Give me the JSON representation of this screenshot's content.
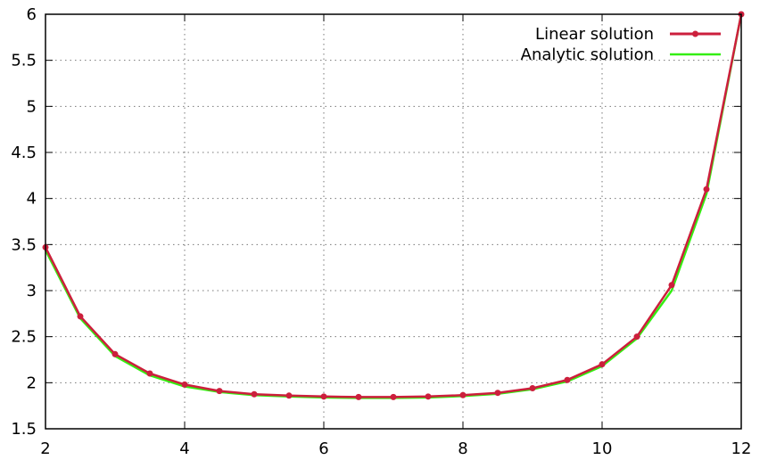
{
  "chart_data": {
    "type": "line",
    "title": "",
    "xlabel": "",
    "ylabel": "",
    "xlim": [
      2,
      12
    ],
    "ylim": [
      1.5,
      6
    ],
    "xticks": [
      2,
      4,
      6,
      8,
      10,
      12
    ],
    "yticks": [
      1.5,
      2,
      2.5,
      3,
      3.5,
      4,
      4.5,
      5,
      5.5,
      6
    ],
    "xtick_labels": [
      "2",
      "4",
      "6",
      "8",
      "10",
      "12"
    ],
    "ytick_labels": [
      "1.5",
      "2",
      "2.5",
      "3",
      "3.5",
      "4",
      "4.5",
      "5",
      "5.5",
      "6"
    ],
    "grid": true,
    "legend_position": "top-right",
    "series": [
      {
        "name": "Linear solution",
        "color": "#cc1f3c",
        "markers": true,
        "x": [
          2,
          2.5,
          3,
          3.5,
          4,
          4.5,
          5,
          5.5,
          6,
          6.5,
          7,
          7.5,
          8,
          8.5,
          9,
          9.5,
          10,
          10.5,
          11,
          11.5,
          12
        ],
        "y": [
          3.47,
          2.72,
          2.31,
          2.1,
          1.98,
          1.91,
          1.875,
          1.86,
          1.85,
          1.845,
          1.845,
          1.85,
          1.865,
          1.89,
          1.94,
          2.03,
          2.2,
          2.5,
          3.06,
          4.1,
          6.0
        ]
      },
      {
        "name": "Analytic solution",
        "color": "#33ee11",
        "markers": false,
        "x": [
          2,
          2.5,
          3,
          3.5,
          4,
          4.5,
          5,
          5.5,
          6,
          6.5,
          7,
          7.5,
          8,
          8.5,
          9,
          9.5,
          10,
          10.5,
          11,
          11.5,
          12
        ],
        "y": [
          3.44,
          2.7,
          2.29,
          2.08,
          1.96,
          1.9,
          1.865,
          1.85,
          1.84,
          1.835,
          1.835,
          1.84,
          1.855,
          1.88,
          1.93,
          2.015,
          2.18,
          2.48,
          3.0,
          4.05,
          6.0
        ]
      }
    ]
  }
}
